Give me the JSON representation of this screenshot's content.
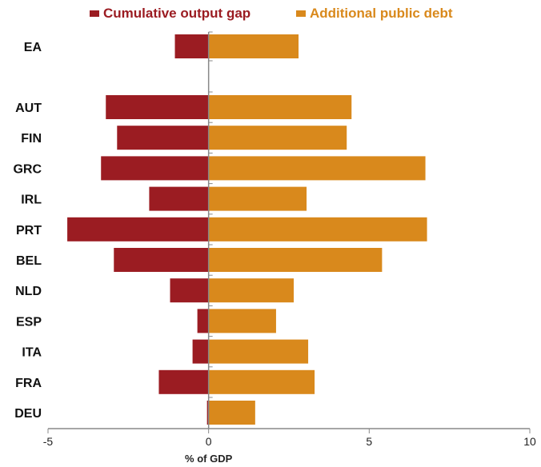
{
  "chart_data": {
    "type": "bar",
    "orientation": "horizontal",
    "categories": [
      "EA",
      "AUT",
      "FIN",
      "GRC",
      "IRL",
      "PRT",
      "BEL",
      "NLD",
      "ESP",
      "ITA",
      "FRA",
      "DEU"
    ],
    "series": [
      {
        "name": "Cumulative output gap",
        "color": "#9b1c22",
        "values": [
          -1.05,
          -3.2,
          -2.85,
          -3.35,
          -1.85,
          -4.4,
          -2.95,
          -1.2,
          -0.35,
          -0.5,
          -1.55,
          -0.05
        ]
      },
      {
        "name": "Additional public debt",
        "color": "#d9891c",
        "values": [
          2.8,
          4.45,
          4.3,
          6.75,
          3.05,
          6.8,
          5.4,
          2.65,
          2.1,
          3.1,
          3.3,
          1.45
        ]
      }
    ],
    "xlabel": "% of GDP",
    "ylabel": "",
    "xlim": [
      -5,
      10
    ],
    "xticks": [
      "-5",
      "0",
      "5",
      "10"
    ],
    "grid": false,
    "legend_position": "top"
  }
}
